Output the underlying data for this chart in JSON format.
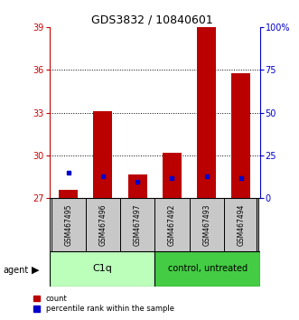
{
  "title": "GDS3832 / 10840601",
  "samples": [
    "GSM467495",
    "GSM467496",
    "GSM467497",
    "GSM467492",
    "GSM467493",
    "GSM467494"
  ],
  "count_values": [
    27.6,
    33.1,
    28.7,
    30.2,
    39.0,
    35.8
  ],
  "percentile_values": [
    15,
    13,
    10,
    12,
    13,
    12
  ],
  "ylim_left": [
    27,
    39
  ],
  "ylim_right": [
    0,
    100
  ],
  "yticks_left": [
    27,
    30,
    33,
    36,
    39
  ],
  "ytick_labels_right": [
    "0",
    "25",
    "50",
    "75",
    "100%"
  ],
  "yticks_right": [
    0,
    25,
    50,
    75,
    100
  ],
  "bar_color": "#bb0000",
  "percentile_color": "#0000cc",
  "grid_lines": [
    30,
    33,
    36
  ],
  "legend_count": "count",
  "legend_percentile": "percentile rank within the sample",
  "bar_width": 0.55,
  "base_value": 27,
  "c1q_color": "#bbffbb",
  "ctrl_color": "#44cc44",
  "sample_bg": "#c8c8c8"
}
